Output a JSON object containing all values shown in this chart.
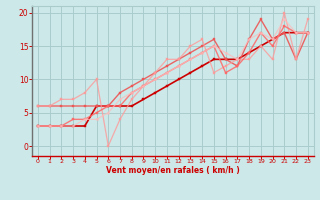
{
  "bg_color": "#cce8e8",
  "grid_color": "#aacccc",
  "axis_color": "#cc0000",
  "text_color": "#cc0000",
  "xlabel": "Vent moyen/en rafales ( km/h )",
  "xlim": [
    -0.5,
    23.5
  ],
  "ylim": [
    -1.5,
    21
  ],
  "yticks": [
    0,
    5,
    10,
    15,
    20
  ],
  "xticks": [
    0,
    1,
    2,
    3,
    4,
    5,
    6,
    7,
    8,
    9,
    10,
    11,
    12,
    13,
    14,
    15,
    16,
    17,
    18,
    19,
    20,
    21,
    22,
    23
  ],
  "lines": [
    {
      "x": [
        0,
        1,
        2,
        3,
        4,
        5,
        6,
        7,
        8,
        9,
        10,
        11,
        12,
        13,
        14,
        15,
        16,
        17,
        18,
        19,
        20,
        21,
        22,
        23
      ],
      "y": [
        3,
        3,
        3,
        3,
        3,
        6,
        6,
        6,
        6,
        7,
        8,
        9,
        10,
        11,
        12,
        13,
        13,
        13,
        14,
        15,
        16,
        17,
        17,
        17
      ],
      "color": "#cc0000",
      "lw": 1.2,
      "marker": "s",
      "ms": 1.8,
      "alpha": 1.0
    },
    {
      "x": [
        0,
        1,
        2,
        3,
        4,
        5,
        6,
        7,
        8,
        9,
        10,
        11,
        12,
        13,
        14,
        15,
        16,
        17,
        18,
        19,
        20,
        21,
        22,
        23
      ],
      "y": [
        6,
        6,
        6,
        6,
        6,
        6,
        6,
        8,
        9,
        10,
        11,
        12,
        13,
        14,
        15,
        16,
        13,
        12,
        16,
        19,
        16,
        17,
        13,
        17
      ],
      "color": "#ee5555",
      "lw": 1.0,
      "marker": "s",
      "ms": 1.6,
      "alpha": 0.9
    },
    {
      "x": [
        0,
        1,
        2,
        3,
        4,
        5,
        6,
        7,
        8,
        9,
        10,
        11,
        12,
        13,
        14,
        15,
        16,
        17,
        18,
        19,
        20,
        21,
        22,
        23
      ],
      "y": [
        6,
        6,
        7,
        7,
        8,
        10,
        0,
        4,
        7,
        9,
        11,
        13,
        13,
        15,
        16,
        11,
        12,
        13,
        13,
        15,
        13,
        20,
        13,
        19
      ],
      "color": "#ff9999",
      "lw": 0.9,
      "marker": "s",
      "ms": 1.6,
      "alpha": 0.8
    },
    {
      "x": [
        0,
        1,
        2,
        3,
        4,
        5,
        6,
        7,
        8,
        9,
        10,
        11,
        12,
        13,
        14,
        15,
        16,
        17,
        18,
        19,
        20,
        21,
        22,
        23
      ],
      "y": [
        3,
        3,
        3,
        4,
        4,
        5,
        6,
        6,
        8,
        9,
        10,
        11,
        12,
        13,
        14,
        15,
        11,
        12,
        14,
        17,
        15,
        18,
        17,
        17
      ],
      "color": "#ff6666",
      "lw": 1.0,
      "marker": "s",
      "ms": 1.6,
      "alpha": 0.85
    },
    {
      "x": [
        0,
        1,
        2,
        3,
        4,
        5,
        6,
        7,
        8,
        9,
        10,
        11,
        12,
        13,
        14,
        15,
        16,
        17,
        18,
        19,
        20,
        21,
        22,
        23
      ],
      "y": [
        3,
        3,
        3,
        3,
        4,
        4,
        5,
        7,
        8,
        9,
        10,
        11,
        12,
        13,
        14,
        15,
        14,
        13,
        16,
        17,
        16,
        19,
        17,
        17
      ],
      "color": "#ffbbbb",
      "lw": 0.9,
      "marker": "s",
      "ms": 1.4,
      "alpha": 0.75
    }
  ]
}
